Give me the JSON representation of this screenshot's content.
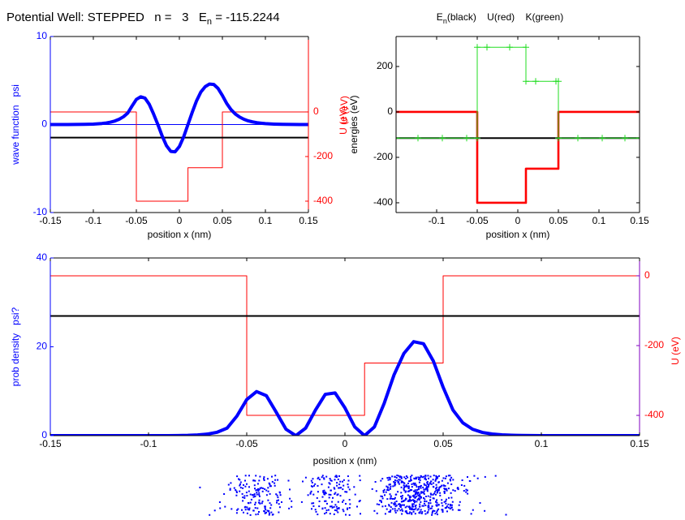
{
  "chart_data": [
    {
      "type": "line",
      "title": "Potential Well: STEPPED   n =   3   E",
      "title_sub": "n",
      "title_end": " = -115.2244",
      "xlabel": "position x (nm)",
      "ylabel": "wave function   psi",
      "y2label": "U (eV)",
      "xlim": [
        -0.15,
        0.15
      ],
      "xticks": [
        -0.15,
        -0.1,
        -0.05,
        0,
        0.05,
        0.1,
        0.15
      ],
      "ylim": [
        -10,
        10
      ],
      "yticks": [
        -10,
        0,
        10
      ],
      "y2lim": [
        -451,
        338
      ],
      "y2ticks": [
        -400,
        -200,
        0
      ],
      "y_axis_color": "#0000ff",
      "y2_axis_color": "#ff0000",
      "series": [
        {
          "color": "#0000ff",
          "style": "thin",
          "x": [
            -0.15,
            0.15
          ],
          "values": [
            0,
            0
          ]
        },
        {
          "color": "#ff0000",
          "style": "thin",
          "axis": "y2",
          "x": [
            -0.15,
            -0.05,
            -0.05,
            0.01,
            0.01,
            0.05,
            0.05,
            0.15
          ],
          "values": [
            0,
            0,
            -400,
            -400,
            -250,
            -250,
            0,
            0
          ]
        },
        {
          "color": "#000000",
          "style": "medium",
          "axis": "y2",
          "x": [
            -0.15,
            0.15
          ],
          "values": [
            -115.2244,
            -115.2244
          ]
        },
        {
          "color": "#0000ff",
          "style": "thick",
          "x": [
            -0.15,
            -0.14,
            -0.13,
            -0.12,
            -0.11,
            -0.1,
            -0.095,
            -0.09,
            -0.085,
            -0.08,
            -0.075,
            -0.07,
            -0.065,
            -0.06,
            -0.055,
            -0.05,
            -0.045,
            -0.04,
            -0.035,
            -0.03,
            -0.025,
            -0.02,
            -0.015,
            -0.01,
            -0.005,
            0,
            0.005,
            0.01,
            0.015,
            0.02,
            0.025,
            0.03,
            0.035,
            0.04,
            0.045,
            0.05,
            0.055,
            0.06,
            0.065,
            0.07,
            0.075,
            0.08,
            0.085,
            0.09,
            0.095,
            0.1,
            0.11,
            0.12,
            0.13,
            0.14,
            0.15
          ],
          "values": [
            0,
            0,
            0,
            0.01,
            0.02,
            0.05,
            0.08,
            0.12,
            0.18,
            0.27,
            0.4,
            0.6,
            0.88,
            1.3,
            2.1,
            2.85,
            3.15,
            3.0,
            2.3,
            1.2,
            0,
            -1.3,
            -2.4,
            -3.05,
            -3.1,
            -2.5,
            -1.4,
            0,
            1.4,
            2.7,
            3.7,
            4.3,
            4.6,
            4.55,
            4.1,
            3.3,
            2.4,
            1.7,
            1.2,
            0.85,
            0.6,
            0.42,
            0.3,
            0.21,
            0.15,
            0.1,
            0.05,
            0.02,
            0.01,
            0,
            0
          ]
        }
      ]
    },
    {
      "type": "line",
      "title": "E",
      "title_sub": "n",
      "title_end": "(black)    U(red)    K(green)",
      "xlabel": "position x (nm)",
      "ylabel": "energies (eV)",
      "ylabel2": "U (eV)",
      "xlim": [
        -0.15,
        0.15
      ],
      "xticks": [
        -0.1,
        -0.05,
        0,
        0.05,
        0.1,
        0.15
      ],
      "ylim": [
        -443,
        332
      ],
      "yticks": [
        -400,
        -200,
        0,
        200
      ],
      "y_axis_color": "#000000",
      "series": [
        {
          "color": "#ff0000",
          "style": "heavy",
          "x": [
            -0.15,
            -0.05,
            -0.05,
            0.01,
            0.01,
            0.05,
            0.05,
            0.15
          ],
          "values": [
            0,
            0,
            -400,
            -400,
            -250,
            -250,
            0,
            0
          ]
        },
        {
          "color": "#000000",
          "style": "medium",
          "x": [
            -0.15,
            0.15
          ],
          "values": [
            -115.2244,
            -115.2244
          ]
        },
        {
          "color": "#22dd22",
          "style": "thin",
          "marker": "+",
          "x": [
            -0.15,
            -0.123,
            -0.093,
            -0.063,
            -0.05,
            -0.05,
            -0.038,
            -0.01,
            0.01,
            0.01,
            0.022,
            0.047,
            0.05,
            0.05,
            0.074,
            0.104,
            0.132,
            0.15
          ],
          "values": [
            -115.2244,
            -115.2244,
            -115.2244,
            -115.2244,
            -115.2244,
            284.7756,
            284.7756,
            284.7756,
            284.7756,
            134.7756,
            134.7756,
            134.7756,
            134.7756,
            -115.2244,
            -115.2244,
            -115.2244,
            -115.2244,
            -115.2244
          ]
        }
      ]
    },
    {
      "type": "line",
      "xlabel": "position x (nm)",
      "ylabel": "prob density   psi?",
      "y2label": "U (eV)",
      "xlim": [
        -0.15,
        0.15
      ],
      "xticks": [
        -0.15,
        -0.1,
        -0.05,
        0,
        0.05,
        0.1,
        0.15
      ],
      "ylim": [
        0,
        40
      ],
      "yticks": [
        0,
        20,
        40
      ],
      "y2lim": [
        -458,
        51
      ],
      "y2ticks": [
        -400,
        -200,
        0
      ],
      "y_axis_color": "#0000ff",
      "y2_axis_color": "#8000c0",
      "y2_label_color": "#ff0000",
      "sample_dots": true,
      "series": [
        {
          "color": "#ff0000",
          "style": "thin",
          "axis": "y2",
          "x": [
            -0.15,
            -0.05,
            -0.05,
            0.01,
            0.01,
            0.05,
            0.05,
            0.15
          ],
          "values": [
            0,
            0,
            -400,
            -400,
            -250,
            -250,
            0,
            0
          ]
        },
        {
          "color": "#000000",
          "style": "medium",
          "axis": "y2",
          "x": [
            -0.15,
            0.15
          ],
          "values": [
            -115.2244,
            -115.2244
          ]
        },
        {
          "color": "#0000ff",
          "style": "thick",
          "x": [
            -0.15,
            -0.14,
            -0.13,
            -0.12,
            -0.11,
            -0.1,
            -0.095,
            -0.09,
            -0.085,
            -0.08,
            -0.075,
            -0.07,
            -0.065,
            -0.06,
            -0.055,
            -0.05,
            -0.045,
            -0.04,
            -0.035,
            -0.03,
            -0.025,
            -0.02,
            -0.015,
            -0.01,
            -0.005,
            0,
            0.005,
            0.01,
            0.015,
            0.02,
            0.025,
            0.03,
            0.035,
            0.04,
            0.045,
            0.05,
            0.055,
            0.06,
            0.065,
            0.07,
            0.075,
            0.08,
            0.085,
            0.09,
            0.095,
            0.1,
            0.11,
            0.12,
            0.13,
            0.14,
            0.15
          ],
          "values": [
            0,
            0,
            0,
            0,
            0,
            0,
            0.01,
            0.01,
            0.03,
            0.07,
            0.16,
            0.36,
            0.77,
            1.69,
            4.41,
            8.12,
            9.92,
            9.0,
            5.29,
            1.44,
            0,
            1.69,
            5.76,
            9.3,
            9.61,
            6.25,
            1.96,
            0,
            1.96,
            7.29,
            13.69,
            18.49,
            21.16,
            20.7,
            16.81,
            10.89,
            5.76,
            2.89,
            1.44,
            0.72,
            0.36,
            0.18,
            0.09,
            0.04,
            0.02,
            0.01,
            0,
            0,
            0,
            0,
            0
          ]
        }
      ]
    }
  ]
}
